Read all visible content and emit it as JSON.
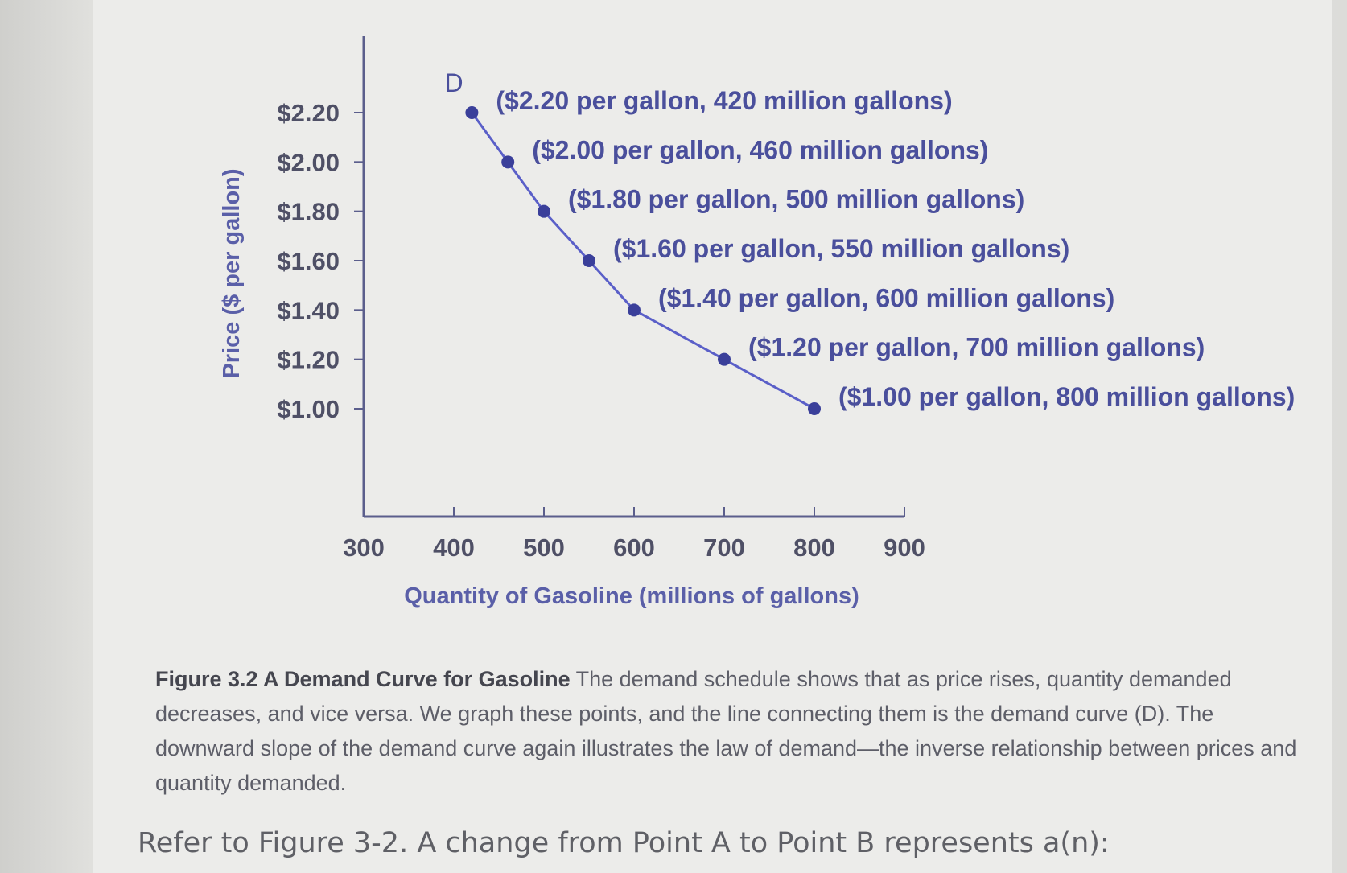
{
  "chart_data": {
    "type": "line",
    "curve_label": "D",
    "xlabel": "Quantity of Gasoline (millions of gallons)",
    "ylabel": "Price ($ per gallon)",
    "xlim": [
      300,
      900
    ],
    "ylim": [
      1.0,
      2.2
    ],
    "x_ticks": [
      300,
      400,
      500,
      600,
      700,
      800,
      900
    ],
    "x_tick_labels": [
      "300",
      "400",
      "500",
      "600",
      "700",
      "800",
      "900"
    ],
    "y_ticks": [
      2.2,
      2.0,
      1.8,
      1.6,
      1.4,
      1.2,
      1.0
    ],
    "y_tick_labels": [
      "$2.20",
      "$2.00",
      "$1.80",
      "$1.60",
      "$1.40",
      "$1.20",
      "$1.00"
    ],
    "points": [
      {
        "x": 420,
        "y": 2.2,
        "label": "($2.20 per gallon, 420 million gallons)"
      },
      {
        "x": 460,
        "y": 2.0,
        "label": "($2.00 per gallon, 460 million gallons)"
      },
      {
        "x": 500,
        "y": 1.8,
        "label": "($1.80 per gallon, 500 million gallons)"
      },
      {
        "x": 550,
        "y": 1.6,
        "label": "($1.60 per gallon, 550 million gallons)"
      },
      {
        "x": 600,
        "y": 1.4,
        "label": "($1.40 per gallon, 600 million gallons)"
      },
      {
        "x": 700,
        "y": 1.2,
        "label": "($1.20 per gallon, 700 million gallons)"
      },
      {
        "x": 800,
        "y": 1.0,
        "label": "($1.00 per gallon, 800 million gallons)"
      }
    ],
    "line_color": "#5a5fc8",
    "point_color": "#3a3f9a",
    "axis_color": "#5b5e8c"
  },
  "caption": {
    "title": "Figure 3.2 A Demand Curve for Gasoline",
    "text": " The demand schedule shows that as price rises, quantity demanded decreases, and vice versa. We graph these points, and the line connecting them is the demand curve (D). The downward slope of the demand curve again illustrates the law of demand—the inverse relationship between prices and quantity demanded."
  },
  "question": "Refer to Figure 3-2. A change from Point A to Point B represents a(n):"
}
